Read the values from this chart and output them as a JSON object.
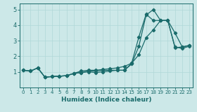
{
  "xlabel": "Humidex (Indice chaleur)",
  "xlim": [
    -0.5,
    23.5
  ],
  "ylim": [
    0,
    5.4
  ],
  "xticks": [
    0,
    1,
    2,
    3,
    4,
    5,
    6,
    7,
    8,
    9,
    10,
    11,
    12,
    13,
    14,
    15,
    16,
    17,
    18,
    19,
    20,
    21,
    22,
    23
  ],
  "yticks": [
    1,
    2,
    3,
    4,
    5
  ],
  "bg_color": "#cce8e8",
  "line_color": "#1a6b6b",
  "grid_color": "#b0d8d8",
  "line1_x": [
    0,
    1,
    2,
    3,
    4,
    5,
    6,
    7,
    8,
    9,
    10,
    11,
    12,
    13,
    14,
    15,
    16,
    17,
    18,
    19,
    20,
    21,
    22,
    23
  ],
  "line1_y": [
    1.1,
    1.05,
    1.25,
    0.65,
    0.7,
    0.72,
    0.75,
    0.9,
    0.95,
    1.05,
    1.05,
    1.1,
    1.1,
    1.1,
    1.1,
    1.55,
    3.25,
    4.7,
    4.3,
    4.3,
    4.3,
    2.55,
    2.6,
    2.7
  ],
  "line2_x": [
    0,
    1,
    2,
    3,
    4,
    5,
    6,
    7,
    8,
    9,
    10,
    11,
    12,
    13,
    14,
    15,
    16,
    17,
    18,
    19,
    20,
    21,
    22,
    23
  ],
  "line2_y": [
    1.1,
    1.05,
    1.25,
    0.65,
    0.7,
    0.72,
    0.75,
    0.9,
    0.95,
    1.0,
    0.95,
    1.0,
    1.05,
    1.1,
    1.1,
    1.5,
    2.65,
    4.65,
    5.0,
    4.3,
    4.3,
    2.6,
    2.5,
    2.65
  ],
  "line3_x": [
    0,
    1,
    2,
    3,
    4,
    5,
    6,
    7,
    8,
    9,
    10,
    11,
    12,
    13,
    14,
    15,
    16,
    17,
    18,
    19,
    20,
    21,
    22,
    23
  ],
  "line3_y": [
    1.1,
    1.05,
    1.25,
    0.65,
    0.7,
    0.72,
    0.75,
    0.9,
    1.05,
    1.1,
    1.1,
    1.15,
    1.2,
    1.25,
    1.35,
    1.55,
    2.1,
    3.2,
    3.7,
    4.3,
    4.3,
    3.5,
    2.6,
    2.7
  ]
}
